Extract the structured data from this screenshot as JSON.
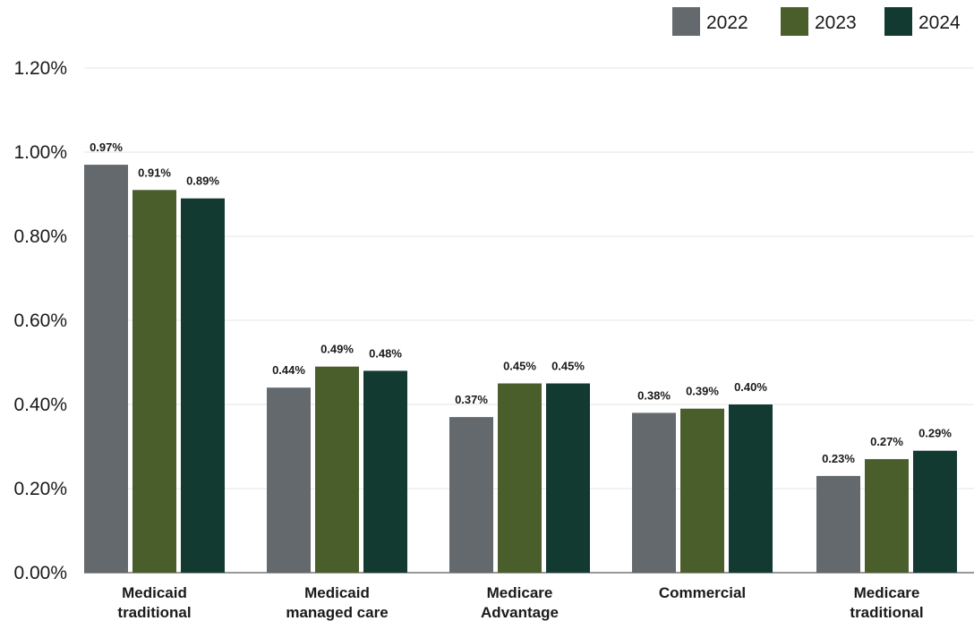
{
  "chart_data": {
    "type": "bar",
    "categories": [
      [
        "Medicaid",
        "traditional"
      ],
      [
        "Medicaid",
        "managed care"
      ],
      [
        "Medicare",
        "Advantage"
      ],
      [
        "Commercial"
      ],
      [
        "Medicare",
        "traditional"
      ]
    ],
    "series": [
      {
        "name": "2022",
        "color": "#63696c",
        "values": [
          0.97,
          0.44,
          0.37,
          0.38,
          0.23
        ],
        "labels": [
          "0.97%",
          "0.44%",
          "0.37%",
          "0.38%",
          "0.23%"
        ]
      },
      {
        "name": "2023",
        "color": "#4a5e2c",
        "values": [
          0.91,
          0.49,
          0.45,
          0.39,
          0.27
        ],
        "labels": [
          "0.91%",
          "0.49%",
          "0.45%",
          "0.39%",
          "0.27%"
        ]
      },
      {
        "name": "2024",
        "color": "#133a31",
        "values": [
          0.89,
          0.48,
          0.45,
          0.4,
          0.29
        ],
        "labels": [
          "0.89%",
          "0.48%",
          "0.45%",
          "0.40%",
          "0.29%"
        ]
      }
    ],
    "yticks": [
      "0.00%",
      "0.20%",
      "0.40%",
      "0.60%",
      "0.80%",
      "1.00%",
      "1.20%"
    ],
    "ytick_values": [
      0,
      0.2,
      0.4,
      0.6,
      0.8,
      1.0,
      1.2
    ],
    "ylim": [
      0,
      1.2
    ],
    "grid": true,
    "legend_position": "top-right"
  }
}
